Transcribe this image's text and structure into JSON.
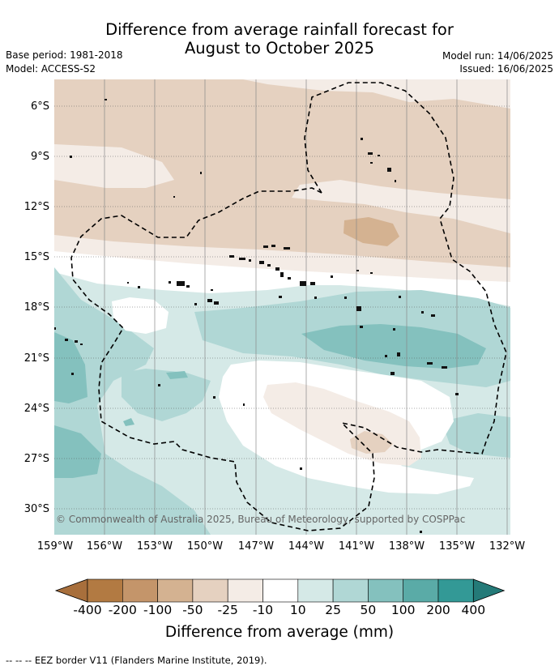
{
  "title_line1": "Difference from average rainfall forecast for",
  "title_line2": "August to October 2025",
  "base_period": "Base period: 1981-2018",
  "model": "Model: ACCESS-S2",
  "model_run": "Model run: 14/06/2025",
  "issued": "Issued: 16/06/2025",
  "copyright": "© Commonwealth of Australia 2025, Bureau of Meteorology, supported by COSPPac",
  "footnote": "--  --  -- EEZ border V11 (Flanders Marine Institute, 2019).",
  "map": {
    "lat_labels": [
      "6°S",
      "9°S",
      "12°S",
      "15°S",
      "18°S",
      "21°S",
      "24°S",
      "27°S",
      "30°S"
    ],
    "lon_labels": [
      "159°W",
      "156°W",
      "153°W",
      "150°W",
      "147°W",
      "144°W",
      "141°W",
      "138°W",
      "135°W",
      "132°W"
    ]
  },
  "colorbar": {
    "title": "Difference from average (mm)",
    "labels": [
      "-400",
      "-200",
      "-100",
      "-50",
      "-25",
      "-10",
      "10",
      "25",
      "50",
      "100",
      "200",
      "400"
    ],
    "colors": [
      "#a86f3c",
      "#b27a42",
      "#c4956a",
      "#d4b291",
      "#e5d1c0",
      "#f4ece6",
      "#ffffff",
      "#d5e9e7",
      "#b0d7d5",
      "#84c1be",
      "#5aaba7",
      "#339996",
      "#247a78"
    ]
  }
}
